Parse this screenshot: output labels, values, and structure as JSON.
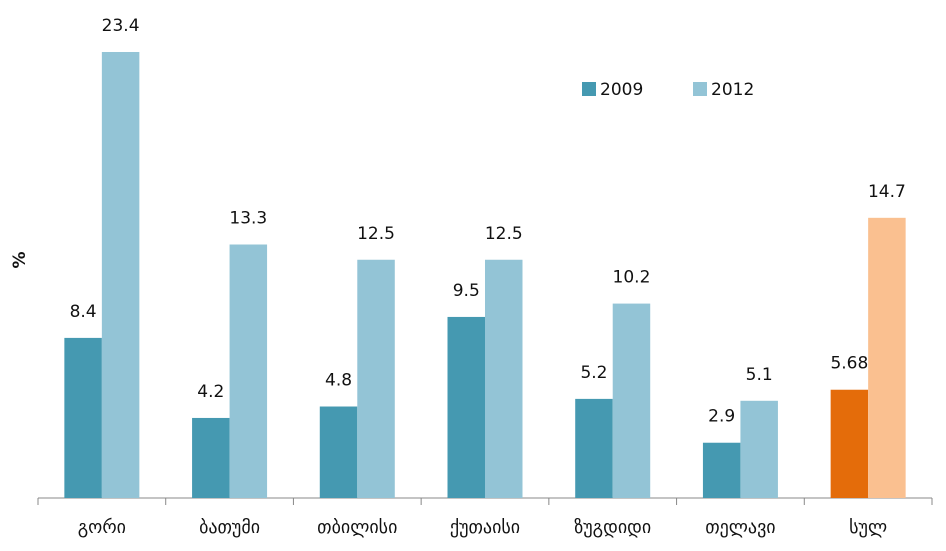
{
  "chart_data": {
    "type": "bar",
    "y_label": "%",
    "categories": [
      "გორი",
      "ბათუმი",
      "თბილისი",
      "ქუთაისი",
      "ზუგდიდი",
      "თელავი",
      "სულ"
    ],
    "series": [
      {
        "name": "2009",
        "color": "#4599b1",
        "colors": [
          "#4599b1",
          "#4599b1",
          "#4599b1",
          "#4599b1",
          "#4599b1",
          "#4599b1",
          "#e46c0a"
        ],
        "values": [
          8.4,
          4.2,
          4.8,
          9.5,
          5.2,
          2.9,
          5.68
        ]
      },
      {
        "name": "2012",
        "color": "#93c4d6",
        "colors": [
          "#93c4d6",
          "#93c4d6",
          "#93c4d6",
          "#93c4d6",
          "#93c4d6",
          "#93c4d6",
          "#fac090"
        ],
        "values": [
          23.4,
          13.3,
          12.5,
          12.5,
          10.2,
          5.1,
          14.7
        ]
      }
    ],
    "ylim": [
      0,
      25
    ],
    "legend": "top-right"
  }
}
